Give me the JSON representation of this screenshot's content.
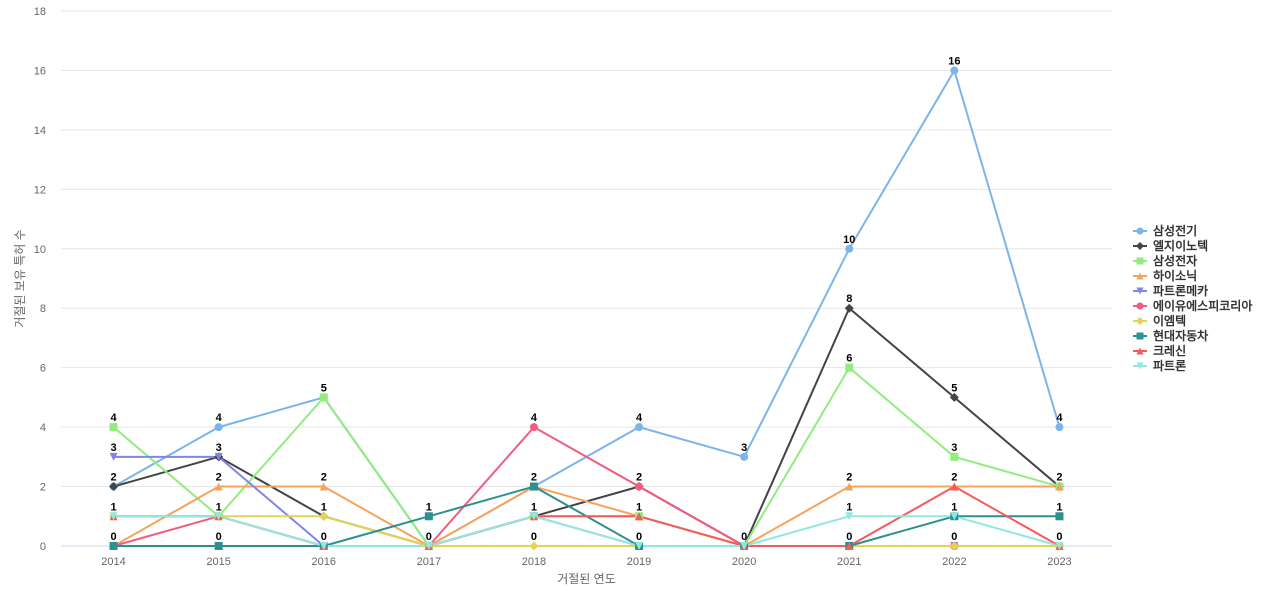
{
  "chart_data": {
    "type": "line",
    "xlabel": "거절된 연도",
    "ylabel": "거절된 보유 특허 수",
    "ylim": [
      0,
      18
    ],
    "yticks": [
      0,
      2,
      4,
      6,
      8,
      10,
      12,
      14,
      16,
      18
    ],
    "grid": true,
    "legend_position": "right",
    "categories": [
      "2014",
      "2015",
      "2016",
      "2017",
      "2018",
      "2019",
      "2020",
      "2021",
      "2022",
      "2023"
    ],
    "series": [
      {
        "name": "삼성전기",
        "color": "#7cb5ec",
        "marker": "circle",
        "values": [
          2,
          4,
          5,
          0,
          2,
          4,
          3,
          10,
          16,
          4
        ]
      },
      {
        "name": "엘지이노텍",
        "color": "#434348",
        "marker": "diamond",
        "values": [
          2,
          3,
          1,
          0,
          1,
          2,
          0,
          8,
          5,
          2
        ]
      },
      {
        "name": "삼성전자",
        "color": "#90ed7d",
        "marker": "square",
        "values": [
          4,
          1,
          5,
          0,
          1,
          1,
          0,
          6,
          3,
          2
        ]
      },
      {
        "name": "하이소닉",
        "color": "#f7a35c",
        "marker": "triangle",
        "values": [
          0,
          2,
          2,
          0,
          2,
          1,
          0,
          2,
          2,
          2
        ]
      },
      {
        "name": "파트론메카",
        "color": "#8085e9",
        "marker": "triangle-down",
        "values": [
          3,
          3,
          0,
          0,
          1,
          0,
          0,
          0,
          0,
          0
        ]
      },
      {
        "name": "에이유에스피코리아",
        "color": "#f15c80",
        "marker": "circle",
        "values": [
          0,
          1,
          0,
          0,
          4,
          2,
          0,
          0,
          0,
          0
        ]
      },
      {
        "name": "이엠텍",
        "color": "#e4d354",
        "marker": "diamond",
        "values": [
          1,
          1,
          1,
          0,
          0,
          0,
          0,
          0,
          0,
          0
        ]
      },
      {
        "name": "현대자동차",
        "color": "#2b908f",
        "marker": "square",
        "values": [
          0,
          0,
          0,
          1,
          2,
          0,
          0,
          0,
          1,
          1
        ]
      },
      {
        "name": "크레신",
        "color": "#f45b5b",
        "marker": "triangle",
        "values": [
          1,
          1,
          0,
          0,
          1,
          1,
          0,
          0,
          2,
          0
        ]
      },
      {
        "name": "파트론",
        "color": "#91e8e1",
        "marker": "triangle-down",
        "values": [
          1,
          1,
          0,
          0,
          1,
          0,
          0,
          1,
          1,
          0
        ]
      }
    ],
    "data_labels": [
      {
        "category": "2014",
        "value": 4
      },
      {
        "category": "2014",
        "value": 3
      },
      {
        "category": "2014",
        "value": 2
      },
      {
        "category": "2014",
        "value": 1
      },
      {
        "category": "2014",
        "value": 0
      },
      {
        "category": "2015",
        "value": 4
      },
      {
        "category": "2015",
        "value": 3
      },
      {
        "category": "2015",
        "value": 2
      },
      {
        "category": "2015",
        "value": 1
      },
      {
        "category": "2015",
        "value": 0
      },
      {
        "category": "2016",
        "value": 5
      },
      {
        "category": "2016",
        "value": 2
      },
      {
        "category": "2016",
        "value": 1
      },
      {
        "category": "2016",
        "value": 0
      },
      {
        "category": "2017",
        "value": 1
      },
      {
        "category": "2017",
        "value": 0
      },
      {
        "category": "2018",
        "value": 4
      },
      {
        "category": "2018",
        "value": 2
      },
      {
        "category": "2018",
        "value": 1
      },
      {
        "category": "2018",
        "value": 0
      },
      {
        "category": "2019",
        "value": 4
      },
      {
        "category": "2019",
        "value": 2
      },
      {
        "category": "2019",
        "value": 1
      },
      {
        "category": "2019",
        "value": 0
      },
      {
        "category": "2020",
        "value": 3
      },
      {
        "category": "2020",
        "value": 0
      },
      {
        "category": "2021",
        "value": 10
      },
      {
        "category": "2021",
        "value": 8
      },
      {
        "category": "2021",
        "value": 6
      },
      {
        "category": "2021",
        "value": 2
      },
      {
        "category": "2021",
        "value": 1
      },
      {
        "category": "2021",
        "value": 0
      },
      {
        "category": "2022",
        "value": 16
      },
      {
        "category": "2022",
        "value": 5
      },
      {
        "category": "2022",
        "value": 3
      },
      {
        "category": "2022",
        "value": 2
      },
      {
        "category": "2022",
        "value": 1
      },
      {
        "category": "2022",
        "value": 0
      },
      {
        "category": "2023",
        "value": 4
      },
      {
        "category": "2023",
        "value": 2
      },
      {
        "category": "2023",
        "value": 1
      },
      {
        "category": "2023",
        "value": 0
      }
    ]
  }
}
